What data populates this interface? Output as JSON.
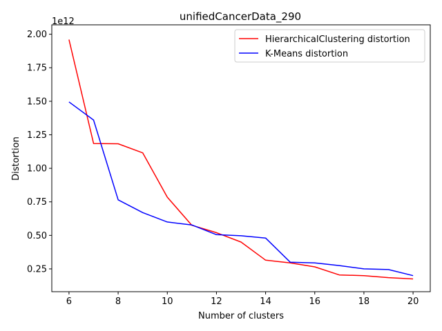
{
  "chart_data": {
    "type": "line",
    "title": "unifiedCancerData_290",
    "xlabel": "Number of clusters",
    "ylabel": "Distortion",
    "y_offset_label": "1e12",
    "x": [
      6,
      7,
      8,
      9,
      10,
      11,
      12,
      13,
      14,
      15,
      16,
      17,
      18,
      19,
      20
    ],
    "xlim": [
      5.3,
      20.7
    ],
    "ylim": [
      0.08,
      2.07
    ],
    "x_ticks": [
      6,
      8,
      10,
      12,
      14,
      16,
      18,
      20
    ],
    "x_tick_labels": [
      "6",
      "8",
      "10",
      "12",
      "14",
      "16",
      "18",
      "20"
    ],
    "y_ticks": [
      0.25,
      0.5,
      0.75,
      1.0,
      1.25,
      1.5,
      1.75,
      2.0
    ],
    "y_tick_labels": [
      "0.25",
      "0.50",
      "0.75",
      "1.00",
      "1.25",
      "1.50",
      "1.75",
      "2.00"
    ],
    "grid": false,
    "legend_position": "top-right",
    "series": [
      {
        "name": "HierarchicalClustering distortion",
        "color": "#ff0000",
        "values": [
          1.96,
          1.185,
          1.183,
          1.115,
          0.785,
          0.575,
          0.52,
          0.45,
          0.315,
          0.295,
          0.265,
          0.205,
          0.2,
          0.185,
          0.175
        ]
      },
      {
        "name": "K-Means distortion",
        "color": "#0000ff",
        "values": [
          1.495,
          1.36,
          0.765,
          0.67,
          0.6,
          0.578,
          0.505,
          0.497,
          0.48,
          0.3,
          0.295,
          0.275,
          0.25,
          0.245,
          0.2
        ]
      }
    ]
  }
}
